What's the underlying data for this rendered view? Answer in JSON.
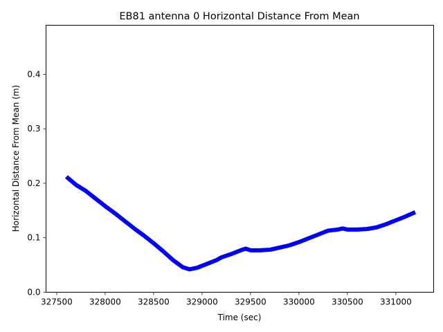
{
  "chart_data": {
    "type": "line",
    "title": "EB81 antenna 0 Horizontal Distance From Mean",
    "xlabel": "Time (sec)",
    "ylabel": "Horizontal Distance From Mean (m)",
    "xlim": [
      327390,
      331390
    ],
    "ylim": [
      0.0,
      0.49
    ],
    "xticks": [
      327500,
      328000,
      328500,
      329000,
      329500,
      330000,
      330500,
      331000
    ],
    "xtick_labels": [
      "327500",
      "328000",
      "328500",
      "329000",
      "329500",
      "330000",
      "330500",
      "331000"
    ],
    "yticks": [
      0.0,
      0.1,
      0.2,
      0.3,
      0.4
    ],
    "ytick_labels": [
      "0.0",
      "0.1",
      "0.2",
      "0.3",
      "0.4"
    ],
    "grid": false,
    "color": "#0000ff",
    "series": [
      {
        "x": [
          327600,
          327700,
          327800,
          327900,
          328000,
          328100,
          328200,
          328300,
          328400,
          328500,
          328600,
          328700,
          328800,
          328870,
          328950,
          329050,
          329150,
          329200,
          329300,
          329400,
          329450,
          329500,
          329600,
          329700,
          329800,
          329900,
          330000,
          330100,
          330200,
          330300,
          330400,
          330450,
          330500,
          330600,
          330700,
          330800,
          330900,
          331000,
          331100,
          331200
        ],
        "y": [
          0.212,
          0.197,
          0.186,
          0.172,
          0.158,
          0.145,
          0.131,
          0.117,
          0.104,
          0.09,
          0.075,
          0.059,
          0.046,
          0.042,
          0.045,
          0.052,
          0.059,
          0.064,
          0.07,
          0.077,
          0.08,
          0.077,
          0.077,
          0.078,
          0.082,
          0.086,
          0.092,
          0.099,
          0.106,
          0.113,
          0.115,
          0.117,
          0.115,
          0.115,
          0.116,
          0.119,
          0.125,
          0.132,
          0.139,
          0.147
        ]
      }
    ]
  }
}
